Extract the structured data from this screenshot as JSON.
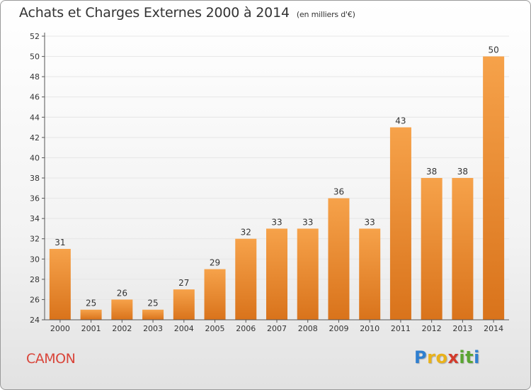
{
  "header": {
    "title": "Achats et Charges Externes 2000 à 2014",
    "subtitle": "(en milliers d'€)"
  },
  "footer": {
    "place": "CAMON",
    "logo_text": "Proxiti",
    "logo_letters": [
      {
        "char": "P",
        "color": "#2f7fd0"
      },
      {
        "char": "r",
        "color": "#e9b21b"
      },
      {
        "char": "o",
        "color": "#e9b21b"
      },
      {
        "char": "x",
        "color": "#d33b2c"
      },
      {
        "char": "i",
        "color": "#5aa532"
      },
      {
        "char": "t",
        "color": "#5aa532"
      },
      {
        "char": "i",
        "color": "#2f7fd0"
      }
    ]
  },
  "colors": {
    "bar_light": "#f6a24a",
    "bar_dark": "#d9731b",
    "axis": "#555555",
    "grid": "#e6e6e6",
    "label": "#333333"
  },
  "chart_data": {
    "type": "bar",
    "title": "Achats et Charges Externes 2000 à 2014",
    "subtitle": "(en milliers d'€)",
    "categories": [
      "2000",
      "2001",
      "2002",
      "2003",
      "2004",
      "2005",
      "2006",
      "2007",
      "2008",
      "2009",
      "2010",
      "2011",
      "2012",
      "2013",
      "2014"
    ],
    "values": [
      31,
      25,
      26,
      25,
      27,
      29,
      32,
      33,
      33,
      36,
      33,
      43,
      38,
      38,
      50
    ],
    "ylim": [
      24,
      52
    ],
    "yticks": [
      24,
      26,
      28,
      30,
      32,
      34,
      36,
      38,
      40,
      42,
      44,
      46,
      48,
      50,
      52
    ],
    "grid": true,
    "data_labels": true
  }
}
